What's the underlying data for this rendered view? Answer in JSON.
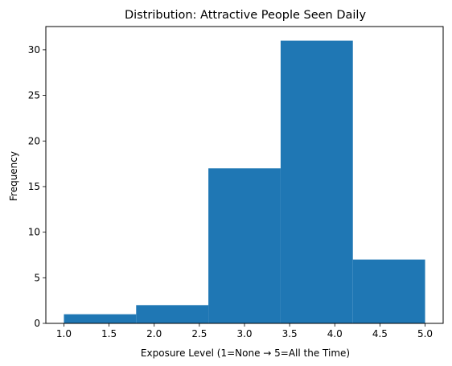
{
  "chart_data": {
    "type": "histogram",
    "title": "Distribution: Attractive People Seen Daily",
    "xlabel": "Exposure Level (1=None → 5=All the Time)",
    "ylabel": "Frequency",
    "bins": [
      {
        "x0": 1.0,
        "x1": 1.8,
        "count": 1
      },
      {
        "x0": 1.8,
        "x1": 2.6,
        "count": 2
      },
      {
        "x0": 2.6,
        "x1": 3.4,
        "count": 17
      },
      {
        "x0": 3.4,
        "x1": 4.2,
        "count": 31
      },
      {
        "x0": 4.2,
        "x1": 5.0,
        "count": 7
      }
    ],
    "xlim": [
      0.8,
      5.2
    ],
    "ylim": [
      0,
      32.55
    ],
    "xticks": [
      "1.0",
      "1.5",
      "2.0",
      "2.5",
      "3.0",
      "3.5",
      "4.0",
      "4.5",
      "5.0"
    ],
    "yticks": [
      "0",
      "5",
      "10",
      "15",
      "20",
      "25",
      "30"
    ],
    "bar_color": "#1f77b4",
    "grid": false,
    "legend": "none"
  }
}
